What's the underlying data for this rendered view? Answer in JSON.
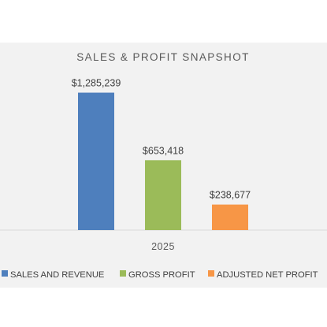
{
  "chart_data": {
    "type": "bar",
    "title": "SALES & PROFIT SNAPSHOT",
    "categories": [
      "2025"
    ],
    "series": [
      {
        "name": "SALES AND REVENUE",
        "values": [
          1285239
        ],
        "label": "$1,285,239",
        "color": "#4e7fbd"
      },
      {
        "name": "GROSS PROFIT",
        "values": [
          653418
        ],
        "label": "$653,418",
        "color": "#9bbb59"
      },
      {
        "name": "ADJUSTED NET PROFIT",
        "values": [
          238677
        ],
        "label": "$238,677",
        "color": "#f79646"
      }
    ],
    "xlabel": "",
    "ylabel": "",
    "ylim": [
      0,
      1400000
    ],
    "grid": false,
    "legend": "bottom",
    "colors": {
      "plot_background": "#f2f2f2",
      "axis_line": "#d9d9d9"
    }
  }
}
